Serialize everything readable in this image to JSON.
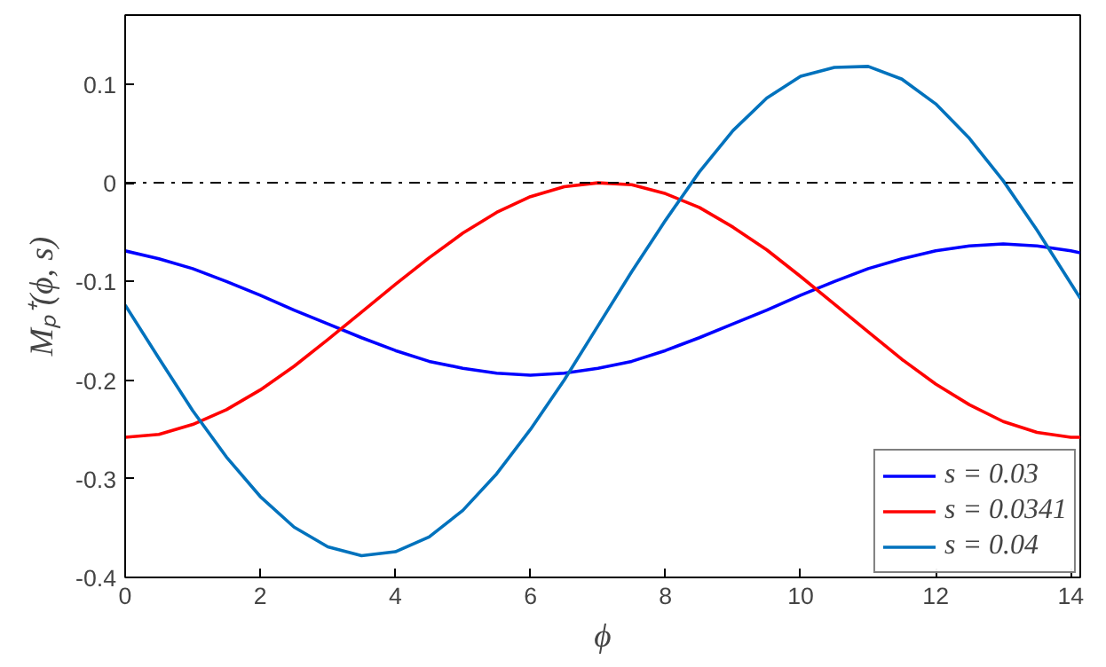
{
  "chart_data": {
    "type": "line",
    "xlabel": "ϕ",
    "ylabel": "Mₚ⁺(ϕ, s)",
    "x": [
      0,
      0.5,
      1,
      1.5,
      2,
      2.5,
      3,
      3.5,
      4,
      4.5,
      5,
      5.5,
      6,
      6.5,
      7,
      7.5,
      8,
      8.5,
      9,
      9.5,
      10,
      10.5,
      11,
      11.5,
      12,
      12.5,
      13,
      13.5,
      14,
      14.14
    ],
    "series": [
      {
        "name": "s = 0.03",
        "color": "#0000ff",
        "values": [
          -0.069,
          -0.077,
          -0.087,
          -0.1,
          -0.114,
          -0.129,
          -0.143,
          -0.157,
          -0.17,
          -0.181,
          -0.188,
          -0.193,
          -0.195,
          -0.193,
          -0.188,
          -0.181,
          -0.17,
          -0.157,
          -0.143,
          -0.129,
          -0.114,
          -0.1,
          -0.087,
          -0.077,
          -0.069,
          -0.064,
          -0.062,
          -0.064,
          -0.069,
          -0.071
        ]
      },
      {
        "name": "s = 0.0341",
        "color": "#ff0000",
        "values": [
          -0.258,
          -0.255,
          -0.245,
          -0.23,
          -0.21,
          -0.186,
          -0.159,
          -0.131,
          -0.103,
          -0.076,
          -0.051,
          -0.03,
          -0.014,
          -0.004,
          0,
          -0.002,
          -0.011,
          -0.025,
          -0.045,
          -0.068,
          -0.095,
          -0.123,
          -0.151,
          -0.179,
          -0.204,
          -0.225,
          -0.242,
          -0.253,
          -0.258,
          -0.258
        ]
      },
      {
        "name": "s = 0.04",
        "color": "#0072bd",
        "values": [
          -0.124,
          -0.178,
          -0.231,
          -0.278,
          -0.318,
          -0.349,
          -0.369,
          -0.378,
          -0.374,
          -0.359,
          -0.332,
          -0.295,
          -0.25,
          -0.2,
          -0.145,
          -0.09,
          -0.038,
          0.011,
          0.053,
          0.086,
          0.108,
          0.117,
          0.118,
          0.105,
          0.08,
          0.045,
          0.002,
          -0.048,
          -0.102,
          -0.117
        ]
      }
    ],
    "xlim": [
      0,
      14.14
    ],
    "ylim": [
      -0.4,
      0.17
    ],
    "xticks": [
      0,
      2,
      4,
      6,
      8,
      10,
      12,
      14
    ],
    "yticks": [
      -0.4,
      -0.3,
      -0.2,
      -0.1,
      0,
      0.1
    ],
    "ref_lines": [
      {
        "axis": "y",
        "value": 0,
        "color": "#000000",
        "line_style": "dashdot"
      }
    ],
    "grid": false,
    "legend": "bottom right",
    "line_style": "solid",
    "marker": "none"
  }
}
